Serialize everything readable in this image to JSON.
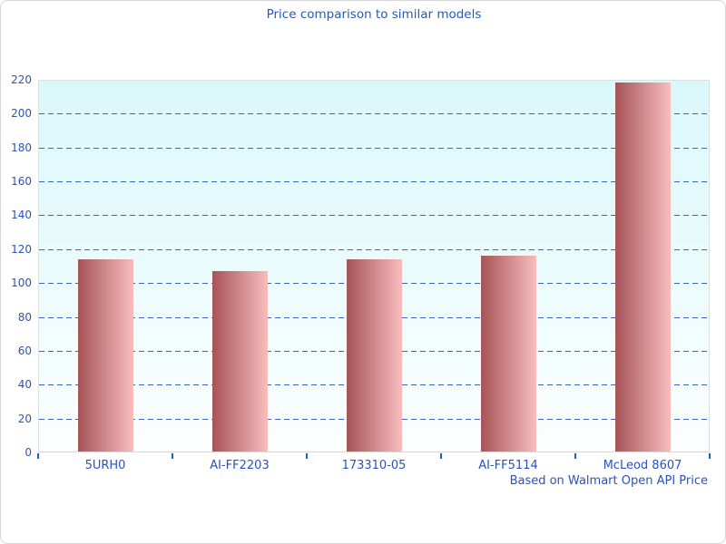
{
  "chart_data": {
    "type": "bar",
    "title": "Price comparison to similar models",
    "caption": "Based on Walmart Open API Price",
    "categories": [
      "5URH0",
      "AI-FF2203",
      "173310-05",
      "AI-FF5114",
      "McLeod 8607"
    ],
    "values": [
      113.5,
      106.5,
      113.5,
      115.5,
      218
    ],
    "xlabel": "",
    "ylabel": "",
    "ylim": [
      0,
      220
    ],
    "ytick_step": 20,
    "grid": "horizontal-dashed",
    "legend": "none",
    "colors": {
      "title_text": "#1b5bc8",
      "axis_text": "#2a52be",
      "gridline": "#3a62c4",
      "tick_mark": "#1a66b3",
      "bar_gradient_left": "#a65457",
      "bar_gradient_right": "#f8bdbd",
      "plot_bg_top": "#daf8fb",
      "plot_bg_bottom": "#fdffff",
      "plot_border": "#d9e2e2"
    }
  }
}
